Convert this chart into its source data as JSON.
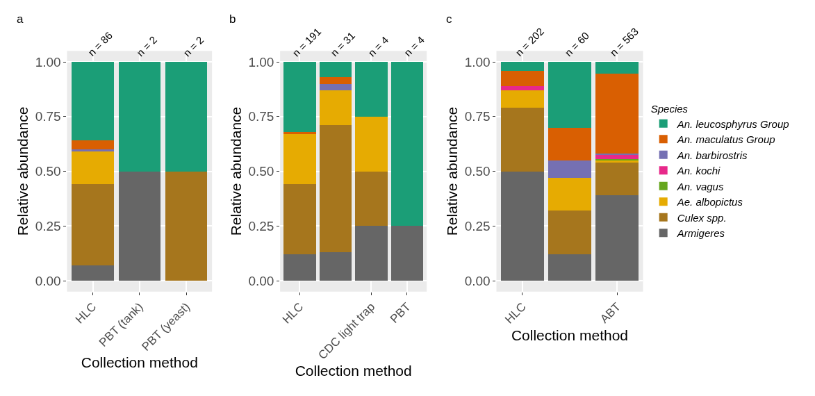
{
  "chart_data": [
    {
      "type": "bar",
      "title": "a",
      "xlabel": "Collection method",
      "ylabel": "Relative abundance",
      "stacked": true,
      "grid": true,
      "categories": [
        "HLC",
        "PBT (tank)",
        "PBT (yeast)"
      ],
      "ylim": [
        -0.05,
        1.05
      ],
      "yticks": [
        {
          "value": 0,
          "label": "0.00"
        },
        {
          "value": 0.25,
          "label": "0.25"
        },
        {
          "value": 0.5,
          "label": "0.50"
        },
        {
          "value": 0.75,
          "label": "0.75"
        },
        {
          "value": 1,
          "label": "1.00"
        }
      ],
      "annotations": [
        {
          "text": "n = 86",
          "x": "HLC",
          "y": 1
        },
        {
          "text": "n = 2",
          "x": "PBT (tank)",
          "y": 1
        },
        {
          "text": "n = 2",
          "x": "PBT (yeast)",
          "y": 1
        }
      ],
      "series": [
        {
          "color": "#666666",
          "values": [
            0.07,
            0.5,
            0
          ]
        },
        {
          "color": "#a6761d",
          "values": [
            0.37,
            0,
            0.5
          ]
        },
        {
          "color": "#e6ab02",
          "values": [
            0.15,
            0,
            0
          ]
        },
        {
          "color": "#7570b3",
          "values": [
            0.01,
            0,
            0
          ]
        },
        {
          "color": "#d95f02",
          "values": [
            0.04,
            0,
            0
          ]
        },
        {
          "color": "#1b9e77",
          "values": [
            0.36,
            0.5,
            0.5
          ]
        }
      ]
    },
    {
      "type": "bar",
      "title": "b",
      "xlabel": "Collection method",
      "ylabel": "Relative abundance",
      "stacked": true,
      "grid": true,
      "categories": [
        "HLC",
        null,
        "CDC light trap",
        "PBT"
      ],
      "ylim": [
        -0.05,
        1.05
      ],
      "yticks": [
        {
          "value": 0,
          "label": "0.00"
        },
        {
          "value": 0.25,
          "label": "0.25"
        },
        {
          "value": 0.5,
          "label": "0.50"
        },
        {
          "value": 0.75,
          "label": "0.75"
        },
        {
          "value": 1,
          "label": "1.00"
        }
      ],
      "annotations": [
        {
          "text": "n = 191",
          "x": "HLC",
          "y": 1
        },
        {
          "text": "n = 31",
          "y": 1
        },
        {
          "text": "n = 4",
          "x": "CDC light trap",
          "y": 1
        },
        {
          "text": "n = 4",
          "x": "PBT",
          "y": 1
        }
      ],
      "series": [
        {
          "color": "#666666",
          "values": [
            0.12,
            0.13,
            0.25,
            0.25
          ]
        },
        {
          "color": "#a6761d",
          "values": [
            0.32,
            0.58,
            0.25,
            0
          ]
        },
        {
          "color": "#e6ab02",
          "values": [
            0.23,
            0.16,
            0.25,
            0
          ]
        },
        {
          "color": "#7570b3",
          "values": [
            0,
            0.03,
            0,
            0
          ]
        },
        {
          "color": "#d95f02",
          "values": [
            0.01,
            0.03,
            0,
            0
          ]
        },
        {
          "color": "#1b9e77",
          "values": [
            0.32,
            0.07,
            0.25,
            0.75
          ]
        }
      ]
    },
    {
      "type": "bar",
      "title": "c",
      "xlabel": "Collection method",
      "ylabel": "Relative abundance",
      "stacked": true,
      "grid": true,
      "legend": "right",
      "legend_title": "Species",
      "categories": [
        "HLC",
        null,
        "ABT"
      ],
      "ylim": [
        -0.05,
        1.05
      ],
      "yticks": [
        {
          "value": 0,
          "label": "0.00"
        },
        {
          "value": 0.25,
          "label": "0.25"
        },
        {
          "value": 0.5,
          "label": "0.50"
        },
        {
          "value": 0.75,
          "label": "0.75"
        },
        {
          "value": 1,
          "label": "1.00"
        }
      ],
      "annotations": [
        {
          "text": "n = 202",
          "x": "HLC",
          "y": 1
        },
        {
          "text": "n = 60",
          "y": 1
        },
        {
          "text": "n = 563",
          "x": "ABT",
          "y": 1
        }
      ],
      "series": [
        {
          "name": "Armigeres",
          "color": "#666666",
          "values": [
            0.5,
            0.12,
            0.39
          ]
        },
        {
          "name": "Culex spp.",
          "color": "#a6761d",
          "values": [
            0.29,
            0.2,
            0.15
          ]
        },
        {
          "name": "Ae. albopictus",
          "color": "#e6ab02",
          "values": [
            0.08,
            0.15,
            0.01
          ]
        },
        {
          "name": "An. vagus",
          "color": "#66a61e",
          "values": [
            0,
            0,
            0.005
          ]
        },
        {
          "name": "An. kochi",
          "color": "#e7298a",
          "values": [
            0.02,
            0,
            0.02
          ]
        },
        {
          "name": "An. barbirostris",
          "color": "#7570b3",
          "values": [
            0,
            0.08,
            0.005
          ]
        },
        {
          "name": "An. maculatus Group",
          "color": "#d95f02",
          "values": [
            0.07,
            0.15,
            0.365
          ]
        },
        {
          "name": "An. leucosphyrus Group",
          "color": "#1b9e77",
          "values": [
            0.04,
            0.3,
            0.055
          ]
        }
      ]
    }
  ]
}
